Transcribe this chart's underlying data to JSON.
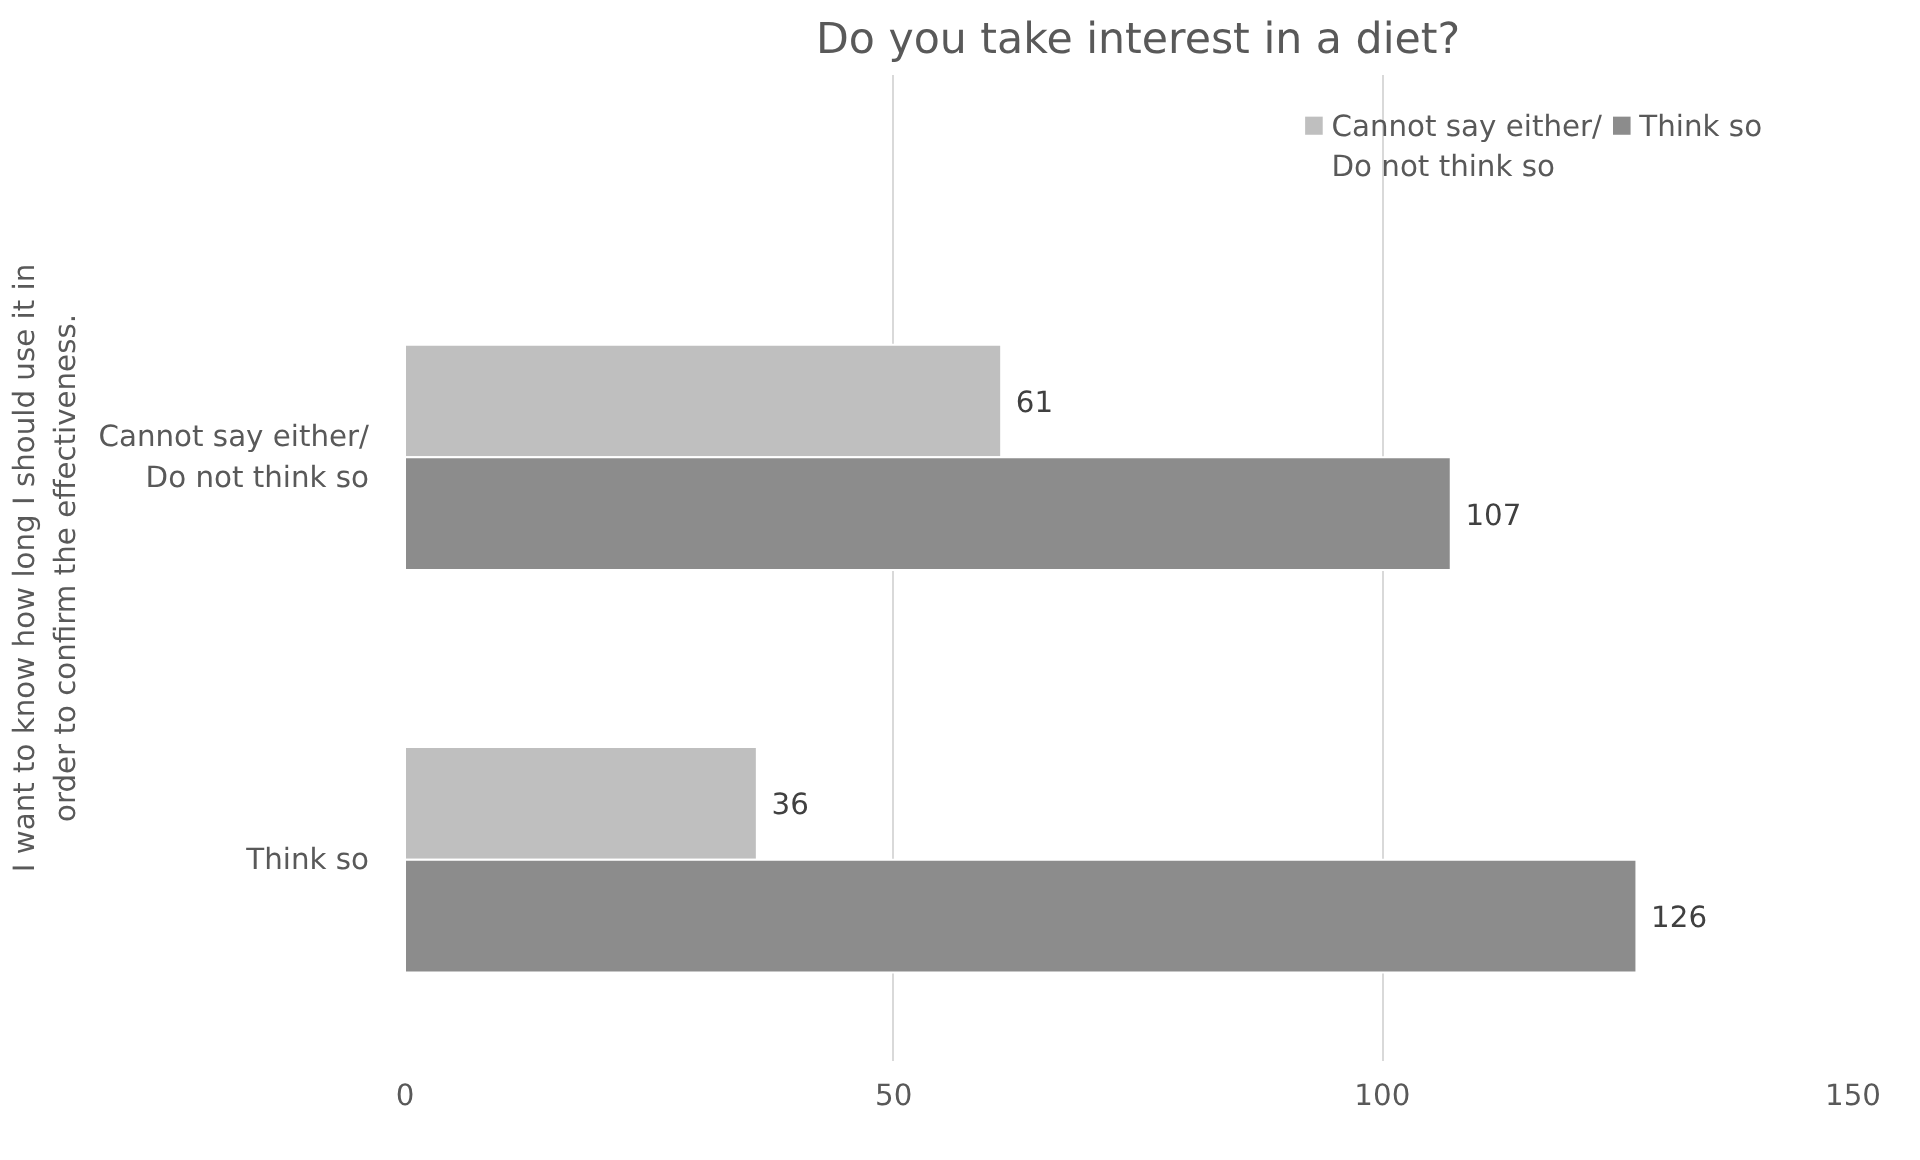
{
  "chart_data": {
    "type": "bar",
    "orientation": "horizontal",
    "title": "Do you take interest in a diet?",
    "ylabel": "I want to know how long I should use it in\norder to confirm the effectiveness.",
    "categories": [
      "Cannot say either/\nDo not think so",
      "Think so"
    ],
    "series": [
      {
        "name": "Cannot say either/\nDo not think so",
        "color": "#bfbfbf",
        "values": [
          61,
          36
        ]
      },
      {
        "name": "Think so",
        "color": "#8c8c8c",
        "values": [
          107,
          126
        ]
      }
    ],
    "xlim": [
      0,
      150
    ],
    "xticks": [
      0,
      50,
      100,
      150
    ],
    "grid": "x",
    "legend": "top",
    "data_labels": true
  }
}
